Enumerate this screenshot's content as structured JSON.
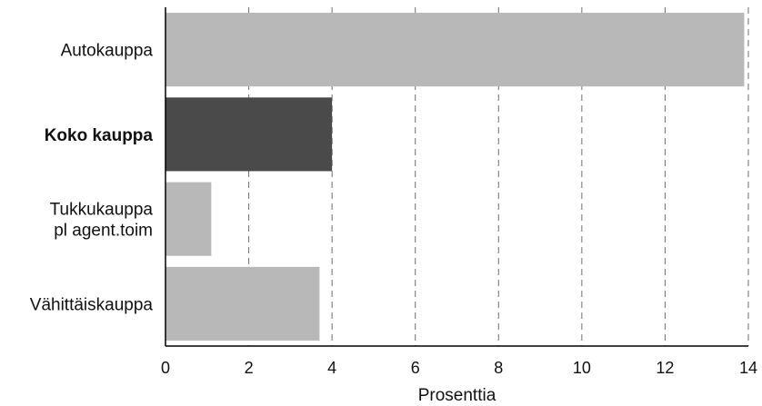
{
  "chart_data": {
    "type": "bar",
    "orientation": "horizontal",
    "categories": [
      "Autokauppa",
      "Koko kauppa",
      "Tukkukauppa pl agent.toim",
      "Vähittäiskauppa"
    ],
    "category_lines": [
      [
        "Autokauppa"
      ],
      [
        "Koko kauppa"
      ],
      [
        "Tukkukauppa",
        "pl agent.toim"
      ],
      [
        "Vähittäiskauppa"
      ]
    ],
    "values": [
      13.9,
      4.0,
      1.1,
      3.7
    ],
    "highlight_category": "Koko kauppa",
    "xlabel": "Prosenttia",
    "ylabel": "",
    "title": "",
    "xlim": [
      0,
      14
    ],
    "xticks": [
      0,
      2,
      4,
      6,
      8,
      10,
      12,
      14
    ],
    "grid": "vertical dashed",
    "colors": {
      "bar": "#b8b8b8",
      "highlight_bar": "#4a4a4a",
      "grid": "#6e6e6e",
      "axis": "#000000"
    }
  }
}
